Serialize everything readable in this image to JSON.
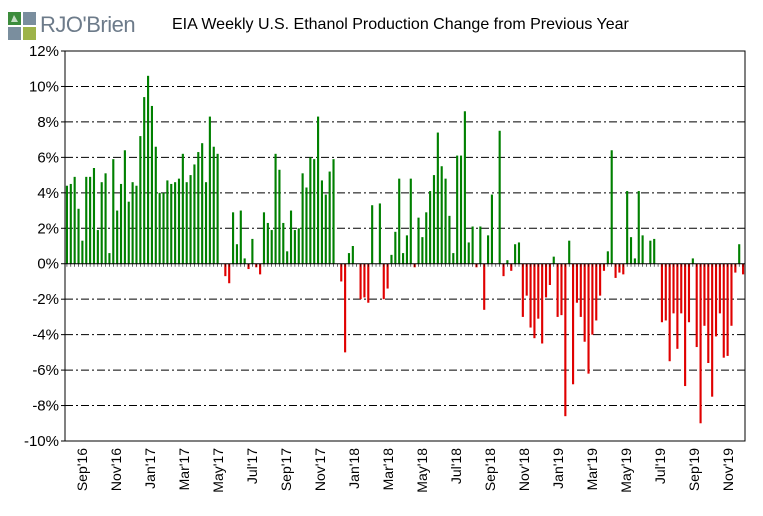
{
  "brand": {
    "logo_text": "RJO'Brien"
  },
  "chart_data": {
    "type": "bar",
    "title": "EIA Weekly U.S. Ethanol Production Change from Previous Year",
    "xlabel": "",
    "ylabel": "",
    "ylim": [
      -10,
      12
    ],
    "y_ticks": [
      "12%",
      "10%",
      "8%",
      "6%",
      "4%",
      "2%",
      "0%",
      "-2%",
      "-4%",
      "-6%",
      "-8%",
      "-10%"
    ],
    "x_tick_labels": [
      "Sep'16",
      "Nov'16",
      "Jan'17",
      "Mar'17",
      "May'17",
      "Jul'17",
      "Sep'17",
      "Nov'17",
      "Jan'18",
      "Mar'18",
      "May'18",
      "Jul'18",
      "Sep'18",
      "Nov'18",
      "Jan'19",
      "Mar'19",
      "May'19",
      "Jul'19",
      "Sep'19",
      "Nov'19"
    ],
    "grid": true,
    "colors": {
      "positive": "#008000",
      "negative": "#e00000",
      "grid": "#000000",
      "plot_bg": "#ffffff"
    },
    "unit": "%",
    "values": [
      4.4,
      4.5,
      4.9,
      3.1,
      1.3,
      4.9,
      4.9,
      5.4,
      1.9,
      4.6,
      5.1,
      0.6,
      5.9,
      3.0,
      4.5,
      6.4,
      3.5,
      4.6,
      4.4,
      7.2,
      9.4,
      10.6,
      8.9,
      6.6,
      4.0,
      4.0,
      4.7,
      4.5,
      4.6,
      4.8,
      6.2,
      4.6,
      5.0,
      5.6,
      6.3,
      6.8,
      4.6,
      8.3,
      6.6,
      6.2,
      0.0,
      -0.7,
      -1.1,
      2.9,
      1.1,
      3.0,
      0.3,
      -0.3,
      1.4,
      -0.2,
      -0.6,
      2.9,
      2.3,
      1.9,
      6.2,
      5.3,
      2.3,
      0.7,
      3.0,
      1.9,
      2.0,
      5.1,
      4.3,
      6.0,
      5.9,
      8.3,
      4.7,
      3.9,
      5.2,
      5.9,
      0.0,
      -1.0,
      -5.0,
      0.6,
      1.0,
      0.0,
      -2.0,
      -1.9,
      -2.2,
      3.3,
      0.0,
      3.4,
      -2.0,
      -1.4,
      0.5,
      1.8,
      4.8,
      0.6,
      1.6,
      4.8,
      -0.2,
      2.6,
      1.5,
      2.9,
      4.1,
      5.0,
      7.4,
      5.5,
      4.8,
      2.7,
      0.6,
      6.1,
      6.1,
      8.6,
      1.2,
      2.1,
      -0.2,
      2.1,
      -2.6,
      1.6,
      3.9,
      0.0,
      7.5,
      -0.7,
      0.2,
      -0.4,
      1.1,
      1.2,
      -3.0,
      -1.8,
      -3.6,
      -4.2,
      -3.1,
      -4.5,
      -1.9,
      -1.2,
      0.4,
      -3.0,
      -2.9,
      -8.6,
      1.3,
      -6.8,
      -2.2,
      -3.0,
      -4.4,
      -6.2,
      -4.0,
      -3.2,
      -1.8,
      -0.4,
      0.7,
      6.4,
      -0.8,
      -0.5,
      -0.6,
      4.1,
      1.5,
      0.3,
      4.1,
      1.6,
      0.0,
      1.3,
      1.4,
      0.0,
      -3.3,
      -3.2,
      -5.5,
      -2.8,
      -4.8,
      -2.8,
      -6.9,
      -3.3,
      0.3,
      -4.7,
      -9.0,
      -3.5,
      -5.6,
      -7.5,
      -4.1,
      -2.8,
      -5.3,
      -5.2,
      -3.5,
      -0.5,
      1.1,
      -0.6
    ]
  }
}
